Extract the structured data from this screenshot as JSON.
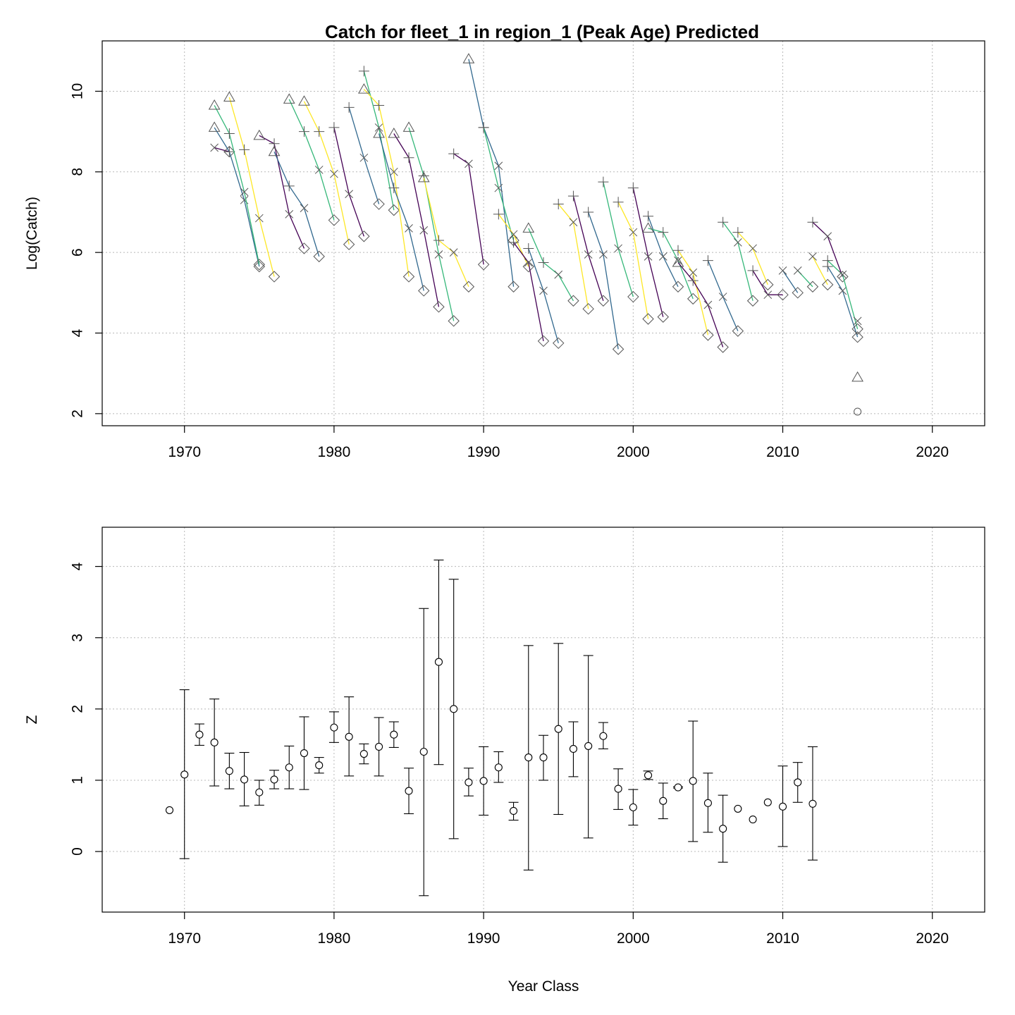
{
  "title": "Catch for fleet_1 in region_1 (Peak Age) Predicted",
  "chart_data": [
    {
      "type": "line",
      "ylabel": "Log(Catch)",
      "xlabel": "",
      "xlim": [
        1964.5,
        2023.5
      ],
      "ylim": [
        1.7,
        11.25
      ],
      "x_ticks": [
        "1970",
        "1980",
        "1990",
        "2000",
        "2010",
        "2020"
      ],
      "y_ticks": [
        "2",
        "4",
        "6",
        "8",
        "10"
      ],
      "grid": true,
      "markers_by_position": [
        "diamond",
        "x",
        "plus",
        "triangle",
        "circle"
      ],
      "color_cycle": [
        "#440154",
        "#31688e",
        "#35b779",
        "#fde725"
      ],
      "series": [
        {
          "values": [
            [
              1972,
              8.6
            ],
            [
              1973,
              8.5
            ]
          ]
        },
        {
          "values": [
            [
              1972,
              9.1
            ],
            [
              1973,
              8.5
            ],
            [
              1974,
              7.3
            ],
            [
              1975,
              5.65
            ]
          ]
        },
        {
          "values": [
            [
              1972,
              9.65
            ],
            [
              1973,
              8.95
            ],
            [
              1974,
              7.5
            ],
            [
              1975,
              5.7
            ]
          ]
        },
        {
          "values": [
            [
              1973,
              9.85
            ],
            [
              1974,
              8.55
            ],
            [
              1975,
              6.85
            ],
            [
              1976,
              5.4
            ]
          ]
        },
        {
          "values": [
            [
              1975,
              8.9
            ],
            [
              1976,
              8.7
            ],
            [
              1977,
              6.95
            ],
            [
              1978,
              6.1
            ]
          ]
        },
        {
          "values": [
            [
              1976,
              8.5
            ],
            [
              1977,
              7.65
            ],
            [
              1978,
              7.1
            ],
            [
              1979,
              5.9
            ]
          ]
        },
        {
          "values": [
            [
              1977,
              9.8
            ],
            [
              1978,
              9.0
            ],
            [
              1979,
              8.05
            ],
            [
              1980,
              6.8
            ]
          ]
        },
        {
          "values": [
            [
              1978,
              9.75
            ],
            [
              1979,
              9.0
            ],
            [
              1980,
              7.95
            ],
            [
              1981,
              6.2
            ]
          ]
        },
        {
          "values": [
            [
              1980,
              9.1
            ],
            [
              1981,
              7.45
            ],
            [
              1982,
              6.4
            ]
          ]
        },
        {
          "values": [
            [
              1981,
              9.6
            ],
            [
              1982,
              8.35
            ],
            [
              1983,
              7.2
            ]
          ]
        },
        {
          "values": [
            [
              1982,
              10.5
            ],
            [
              1983,
              9.1
            ],
            [
              1984,
              7.05
            ]
          ]
        },
        {
          "values": [
            [
              1982,
              10.05
            ],
            [
              1983,
              9.65
            ],
            [
              1984,
              8.0
            ],
            [
              1985,
              5.4
            ]
          ]
        },
        {
          "values": [
            [
              1984,
              8.95
            ],
            [
              1985,
              8.35
            ],
            [
              1986,
              6.55
            ],
            [
              1987,
              4.65
            ]
          ]
        },
        {
          "values": [
            [
              1983,
              8.95
            ],
            [
              1984,
              7.6
            ],
            [
              1985,
              6.6
            ],
            [
              1986,
              5.05
            ]
          ]
        },
        {
          "values": [
            [
              1985,
              9.1
            ],
            [
              1986,
              7.9
            ],
            [
              1987,
              5.95
            ],
            [
              1988,
              4.3
            ]
          ]
        },
        {
          "values": [
            [
              1986,
              7.85
            ],
            [
              1987,
              6.3
            ],
            [
              1988,
              6.0
            ],
            [
              1989,
              5.15
            ]
          ]
        },
        {
          "values": [
            [
              1988,
              8.45
            ],
            [
              1989,
              8.2
            ],
            [
              1990,
              5.7
            ]
          ]
        },
        {
          "values": [
            [
              1989,
              10.8
            ],
            [
              1990,
              9.1
            ],
            [
              1991,
              8.15
            ],
            [
              1992,
              5.15
            ]
          ]
        },
        {
          "values": [
            [
              1990,
              9.1
            ],
            [
              1991,
              7.6
            ],
            [
              1992,
              6.3
            ]
          ]
        },
        {
          "values": [
            [
              1991,
              6.95
            ],
            [
              1992,
              6.45
            ],
            [
              1993,
              5.65
            ]
          ]
        },
        {
          "values": [
            [
              1992,
              6.25
            ],
            [
              1993,
              5.75
            ],
            [
              1994,
              3.8
            ]
          ]
        },
        {
          "values": [
            [
              1993,
              6.1
            ],
            [
              1994,
              5.05
            ],
            [
              1995,
              3.75
            ]
          ]
        },
        {
          "values": [
            [
              1993,
              6.6
            ],
            [
              1994,
              5.75
            ],
            [
              1995,
              5.45
            ],
            [
              1996,
              4.8
            ]
          ]
        },
        {
          "values": [
            [
              1995,
              7.2
            ],
            [
              1996,
              6.75
            ],
            [
              1997,
              4.6
            ]
          ]
        },
        {
          "values": [
            [
              1996,
              7.4
            ],
            [
              1997,
              5.95
            ],
            [
              1998,
              4.8
            ]
          ]
        },
        {
          "values": [
            [
              1997,
              7.0
            ],
            [
              1998,
              5.95
            ],
            [
              1999,
              3.6
            ]
          ]
        },
        {
          "values": [
            [
              1998,
              7.75
            ],
            [
              1999,
              6.1
            ],
            [
              2000,
              4.9
            ]
          ]
        },
        {
          "values": [
            [
              1999,
              7.25
            ],
            [
              2000,
              6.5
            ],
            [
              2001,
              4.35
            ]
          ]
        },
        {
          "values": [
            [
              2000,
              7.6
            ],
            [
              2001,
              5.9
            ],
            [
              2002,
              4.4
            ]
          ]
        },
        {
          "values": [
            [
              2001,
              6.9
            ],
            [
              2002,
              5.9
            ],
            [
              2003,
              5.15
            ]
          ]
        },
        {
          "values": [
            [
              2001,
              6.6
            ],
            [
              2002,
              6.5
            ],
            [
              2003,
              5.8
            ],
            [
              2004,
              4.85
            ]
          ]
        },
        {
          "values": [
            [
              2003,
              6.05
            ],
            [
              2004,
              5.5
            ],
            [
              2005,
              3.95
            ]
          ]
        },
        {
          "values": [
            [
              2003,
              5.75
            ],
            [
              2004,
              5.3
            ],
            [
              2005,
              4.7
            ],
            [
              2006,
              3.65
            ]
          ]
        },
        {
          "values": [
            [
              2005,
              5.8
            ],
            [
              2006,
              4.9
            ],
            [
              2007,
              4.05
            ]
          ]
        },
        {
          "values": [
            [
              2006,
              6.75
            ],
            [
              2007,
              6.25
            ],
            [
              2008,
              4.8
            ]
          ]
        },
        {
          "values": [
            [
              2007,
              6.5
            ],
            [
              2008,
              6.1
            ],
            [
              2009,
              5.2
            ]
          ]
        },
        {
          "values": [
            [
              2008,
              5.55
            ],
            [
              2009,
              4.95
            ],
            [
              2010,
              4.95
            ]
          ]
        },
        {
          "values": [
            [
              2010,
              5.55
            ],
            [
              2011,
              5.0
            ]
          ]
        },
        {
          "values": [
            [
              2011,
              5.55
            ],
            [
              2012,
              5.15
            ]
          ]
        },
        {
          "values": [
            [
              2012,
              5.9
            ],
            [
              2013,
              5.2
            ]
          ]
        },
        {
          "values": [
            [
              2012,
              6.75
            ],
            [
              2013,
              6.4
            ],
            [
              2014,
              5.4
            ]
          ]
        },
        {
          "values": [
            [
              2013,
              5.65
            ],
            [
              2014,
              5.05
            ],
            [
              2015,
              3.9
            ]
          ]
        },
        {
          "values": [
            [
              2013,
              5.8
            ],
            [
              2014,
              5.45
            ],
            [
              2015,
              4.1
            ]
          ]
        },
        {
          "values": [
            [
              2015,
              4.3
            ]
          ]
        },
        {
          "values": [
            [
              2015,
              2.9
            ]
          ]
        },
        {
          "values": [
            [
              2015,
              2.05
            ]
          ]
        }
      ]
    },
    {
      "type": "scatter",
      "ylabel": "Z",
      "xlabel": "Year Class",
      "xlim": [
        1964.5,
        2023.5
      ],
      "ylim": [
        -0.85,
        4.55
      ],
      "x_ticks": [
        "1970",
        "1980",
        "1990",
        "2000",
        "2010",
        "2020"
      ],
      "y_ticks": [
        "0",
        "1",
        "2",
        "3",
        "4"
      ],
      "grid": true,
      "points": [
        {
          "x": 1969,
          "y": 0.58
        },
        {
          "x": 1970,
          "y": 1.08,
          "lo": -0.1,
          "hi": 2.27
        },
        {
          "x": 1971,
          "y": 1.64,
          "lo": 1.49,
          "hi": 1.79
        },
        {
          "x": 1972,
          "y": 1.53,
          "lo": 0.92,
          "hi": 2.14
        },
        {
          "x": 1973,
          "y": 1.13,
          "lo": 0.88,
          "hi": 1.38
        },
        {
          "x": 1974,
          "y": 1.01,
          "lo": 0.64,
          "hi": 1.39
        },
        {
          "x": 1975,
          "y": 0.83,
          "lo": 0.65,
          "hi": 1.0
        },
        {
          "x": 1976,
          "y": 1.01,
          "lo": 0.88,
          "hi": 1.14
        },
        {
          "x": 1977,
          "y": 1.18,
          "lo": 0.88,
          "hi": 1.48
        },
        {
          "x": 1978,
          "y": 1.38,
          "lo": 0.87,
          "hi": 1.89
        },
        {
          "x": 1979,
          "y": 1.21,
          "lo": 1.1,
          "hi": 1.32
        },
        {
          "x": 1980,
          "y": 1.74,
          "lo": 1.53,
          "hi": 1.96
        },
        {
          "x": 1981,
          "y": 1.61,
          "lo": 1.06,
          "hi": 2.17
        },
        {
          "x": 1982,
          "y": 1.37,
          "lo": 1.23,
          "hi": 1.51
        },
        {
          "x": 1983,
          "y": 1.47,
          "lo": 1.06,
          "hi": 1.88
        },
        {
          "x": 1984,
          "y": 1.64,
          "lo": 1.46,
          "hi": 1.82
        },
        {
          "x": 1985,
          "y": 0.85,
          "lo": 0.53,
          "hi": 1.17
        },
        {
          "x": 1986,
          "y": 1.4,
          "lo": -0.62,
          "hi": 3.41
        },
        {
          "x": 1987,
          "y": 2.66,
          "lo": 1.22,
          "hi": 4.09
        },
        {
          "x": 1988,
          "y": 2.0,
          "lo": 0.18,
          "hi": 3.82
        },
        {
          "x": 1989,
          "y": 0.97,
          "lo": 0.78,
          "hi": 1.17
        },
        {
          "x": 1990,
          "y": 0.99,
          "lo": 0.51,
          "hi": 1.47
        },
        {
          "x": 1991,
          "y": 1.18,
          "lo": 0.97,
          "hi": 1.4
        },
        {
          "x": 1992,
          "y": 0.57,
          "lo": 0.44,
          "hi": 0.69
        },
        {
          "x": 1993,
          "y": 1.32,
          "lo": -0.26,
          "hi": 2.89
        },
        {
          "x": 1994,
          "y": 1.32,
          "lo": 1.0,
          "hi": 1.63
        },
        {
          "x": 1995,
          "y": 1.72,
          "lo": 0.52,
          "hi": 2.92
        },
        {
          "x": 1996,
          "y": 1.44,
          "lo": 1.05,
          "hi": 1.82
        },
        {
          "x": 1997,
          "y": 1.48,
          "lo": 0.19,
          "hi": 2.75
        },
        {
          "x": 1998,
          "y": 1.62,
          "lo": 1.44,
          "hi": 1.81
        },
        {
          "x": 1999,
          "y": 0.88,
          "lo": 0.59,
          "hi": 1.16
        },
        {
          "x": 2000,
          "y": 0.62,
          "lo": 0.37,
          "hi": 0.87
        },
        {
          "x": 2001,
          "y": 1.07,
          "lo": 1.01,
          "hi": 1.13
        },
        {
          "x": 2002,
          "y": 0.71,
          "lo": 0.46,
          "hi": 0.96
        },
        {
          "x": 2003,
          "y": 0.9,
          "lo": 0.89,
          "hi": 0.91
        },
        {
          "x": 2004,
          "y": 0.99,
          "lo": 0.14,
          "hi": 1.83
        },
        {
          "x": 2005,
          "y": 0.68,
          "lo": 0.27,
          "hi": 1.1
        },
        {
          "x": 2006,
          "y": 0.32,
          "lo": -0.15,
          "hi": 0.79
        },
        {
          "x": 2007,
          "y": 0.6
        },
        {
          "x": 2008,
          "y": 0.45
        },
        {
          "x": 2009,
          "y": 0.69
        },
        {
          "x": 2010,
          "y": 0.63,
          "lo": 0.07,
          "hi": 1.2
        },
        {
          "x": 2011,
          "y": 0.97,
          "lo": 0.69,
          "hi": 1.25
        },
        {
          "x": 2012,
          "y": 0.67,
          "lo": -0.12,
          "hi": 1.47
        }
      ]
    }
  ]
}
